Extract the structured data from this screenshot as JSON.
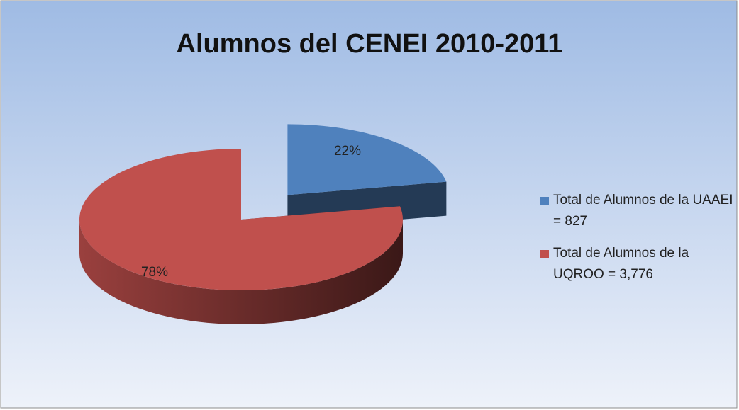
{
  "chart_data": {
    "type": "pie",
    "title": "Alumnos del CENEI 2010-2011",
    "categories": [
      "Total de Alumnos de la UAAEI = 827",
      "Total de Alumnos de la UQROO = 3,776"
    ],
    "values": [
      22,
      78
    ],
    "value_labels": [
      "22%",
      "78%"
    ],
    "colors": [
      "#4f81bd",
      "#c0504d"
    ],
    "legend": "right"
  }
}
